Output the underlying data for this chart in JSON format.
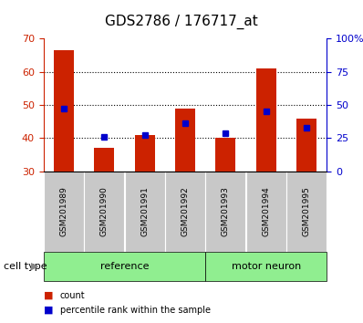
{
  "title": "GDS2786 / 176717_at",
  "samples": [
    "GSM201989",
    "GSM201990",
    "GSM201991",
    "GSM201992",
    "GSM201993",
    "GSM201994",
    "GSM201995"
  ],
  "red_values": [
    66.5,
    37,
    41,
    49,
    40,
    61,
    46
  ],
  "blue_values": [
    49,
    40.5,
    41,
    44.5,
    41.5,
    48,
    43
  ],
  "y_min": 30,
  "y_max": 70,
  "y_ticks": [
    30,
    40,
    50,
    60,
    70
  ],
  "y2_ticks": [
    0,
    25,
    50,
    75,
    100
  ],
  "bar_color": "#CC2200",
  "blue_color": "#0000CC",
  "label_bg_color": "#C8C8C8",
  "green_color": "#90EE90",
  "group_defs": [
    {
      "label": "reference",
      "start": 0,
      "end": 3
    },
    {
      "label": "motor neuron",
      "start": 4,
      "end": 6
    }
  ],
  "title_fontsize": 11,
  "tick_fontsize": 8,
  "sample_fontsize": 6.5,
  "group_fontsize": 8,
  "legend_fontsize": 7,
  "figsize": [
    3.98,
    3.54
  ],
  "dpi": 100
}
